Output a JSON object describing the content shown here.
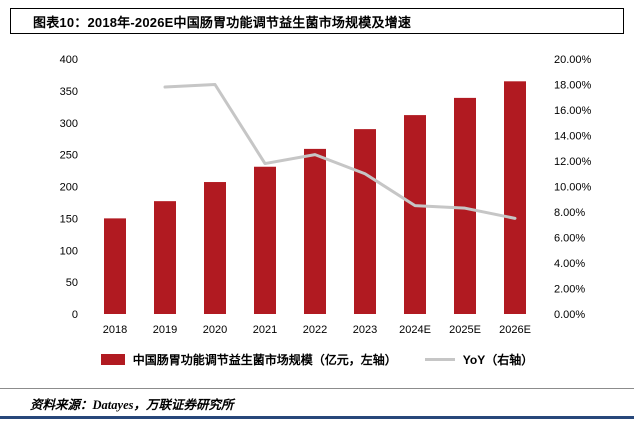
{
  "header": {
    "title": "图表10：2018年-2026E中国肠胃功能调节益生菌市场规模及增速"
  },
  "chart_data": {
    "type": "bar",
    "title": "2018年-2026E中国肠胃功能调节益生菌市场规模及增速",
    "categories": [
      "2018",
      "2019",
      "2020",
      "2021",
      "2022",
      "2023",
      "2024E",
      "2025E",
      "2026E"
    ],
    "series": [
      {
        "name": "中国肠胃功能调节益生菌市场规模（亿元，左轴）",
        "type": "bar",
        "axis": "left",
        "color": "#B11A21",
        "values": [
          150,
          177,
          207,
          231,
          259,
          290,
          312,
          339,
          365
        ]
      },
      {
        "name": "YoY（右轴）",
        "type": "line",
        "axis": "right",
        "color": "#C6C6C6",
        "values": [
          null,
          17.8,
          18.0,
          11.8,
          12.5,
          11.0,
          8.5,
          8.3,
          7.5
        ]
      }
    ],
    "left_axis": {
      "min": 0,
      "max": 400,
      "step": 50
    },
    "right_axis": {
      "min": 0,
      "max": 20,
      "step": 2,
      "unit": "%",
      "format": "0.00%"
    },
    "grid": false,
    "legend_position": "bottom"
  },
  "colors": {
    "bar": "#B11A21",
    "line": "#C6C6C6",
    "footer_rule": "#8C8C8C",
    "bottom_rule": "#27477A"
  },
  "footer": {
    "source_label": "资料来源：",
    "source_value": "Datayes，万联证券研究所"
  }
}
